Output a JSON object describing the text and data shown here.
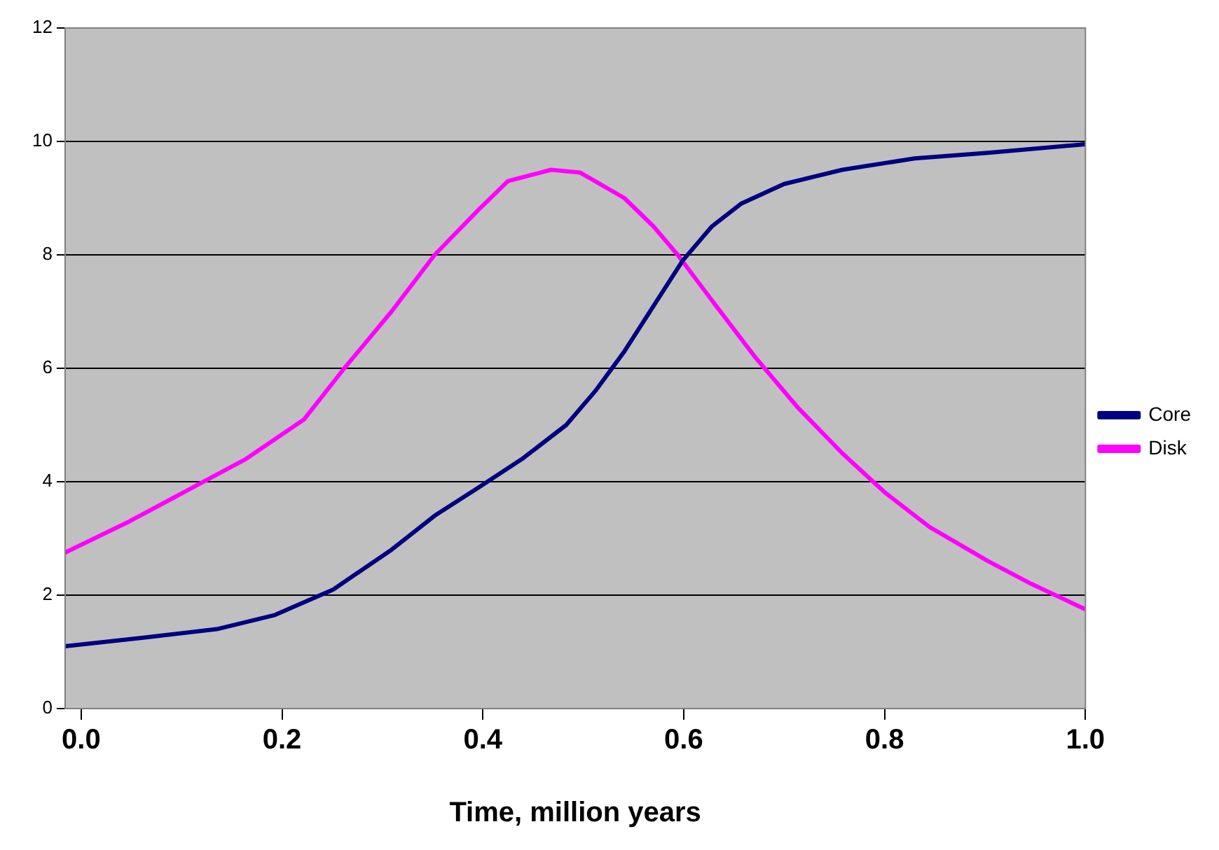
{
  "chart_data": {
    "type": "line",
    "xlabel": "Time, million years",
    "xlim": [
      -0.016,
      1.0
    ],
    "xticks": [
      {
        "value": 0,
        "label": "0.0"
      },
      {
        "value": 0.2,
        "label": "0.2"
      },
      {
        "value": 0.4,
        "label": "0.4"
      },
      {
        "value": 0.6,
        "label": "0.6"
      },
      {
        "value": 0.8,
        "label": "0.8"
      },
      {
        "value": 1.0,
        "label": "1.0"
      }
    ],
    "ylim": [
      0,
      12
    ],
    "yticks": [
      0,
      2,
      4,
      6,
      8,
      10,
      12
    ],
    "grid": "y",
    "legend": "right",
    "marker": "none",
    "line_style": "solid",
    "series": [
      {
        "name": "Core",
        "color": "#000080",
        "x": [
          -0.016,
          0.062,
          0.135,
          0.193,
          0.251,
          0.309,
          0.352,
          0.396,
          0.439,
          0.483,
          0.512,
          0.541,
          0.57,
          0.599,
          0.628,
          0.657,
          0.7,
          0.758,
          0.83,
          0.903,
          1.0
        ],
        "values": [
          1.1,
          1.25,
          1.4,
          1.65,
          2.1,
          2.8,
          3.4,
          3.9,
          4.4,
          5.0,
          5.6,
          6.3,
          7.1,
          7.9,
          8.5,
          8.9,
          9.25,
          9.5,
          9.7,
          9.8,
          9.95
        ]
      },
      {
        "name": "Disk",
        "color": "#ff00ff",
        "x": [
          -0.016,
          0.048,
          0.106,
          0.164,
          0.222,
          0.262,
          0.309,
          0.352,
          0.396,
          0.425,
          0.468,
          0.497,
          0.541,
          0.57,
          0.594,
          0.628,
          0.671,
          0.714,
          0.758,
          0.801,
          0.845,
          0.903,
          0.946,
          1.0
        ],
        "values": [
          2.75,
          3.3,
          3.85,
          4.4,
          5.1,
          6.0,
          7.0,
          8.0,
          8.8,
          9.3,
          9.5,
          9.45,
          9.0,
          8.5,
          8.0,
          7.2,
          6.2,
          5.3,
          4.5,
          3.8,
          3.2,
          2.6,
          2.2,
          1.75
        ]
      }
    ]
  }
}
